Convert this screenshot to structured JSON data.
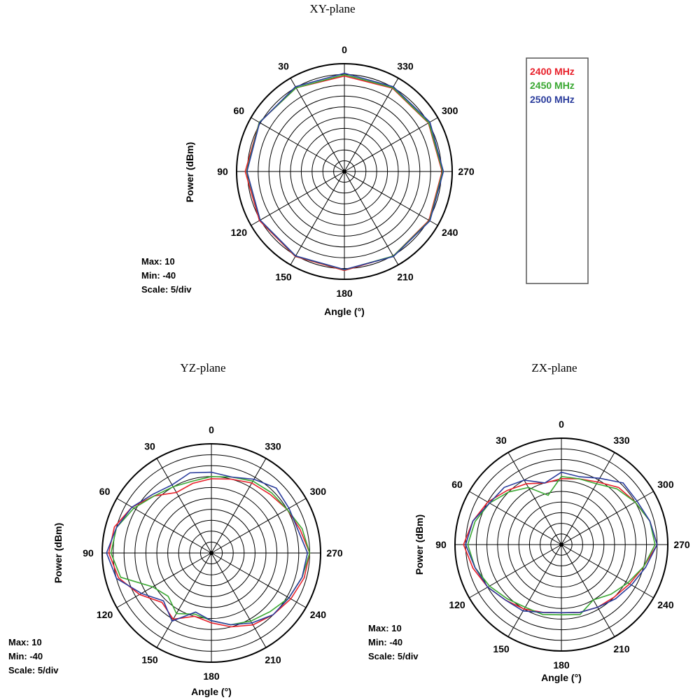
{
  "colors": {
    "c2400": "#e8202a",
    "c2450": "#3aa832",
    "c2500": "#2a3c9c",
    "axes": "#000000"
  },
  "legend": [
    "2400 MHz",
    "2450 MHz",
    "2500 MHz"
  ],
  "chart_data": [
    {
      "type": "polar",
      "title": "XY-plane",
      "xlabel": "Angle  (°)",
      "ylabel": "Power  (dBm)",
      "stats": {
        "max": "Max: 10",
        "min": "Min: -40",
        "scale": "Scale: 5/div"
      },
      "rlim": [
        -40,
        10
      ],
      "angle_ticks": [
        "0",
        "30",
        "60",
        "90",
        "120",
        "150",
        "180",
        "210",
        "240",
        "270",
        "300",
        "330"
      ],
      "angles": [
        0,
        30,
        60,
        90,
        120,
        150,
        180,
        210,
        240,
        270,
        300,
        330
      ],
      "series": [
        {
          "name": "2400 MHz",
          "values": [
            4.3,
            4.8,
            5.6,
            6,
            5.5,
            5.5,
            5.9,
            5.3,
            5.3,
            5.3,
            5,
            4.6
          ]
        },
        {
          "name": "2450 MHz",
          "values": [
            4.9,
            4.8,
            5.6,
            5.4,
            5.1,
            5.3,
            5.6,
            5.3,
            5.6,
            5.6,
            5.2,
            4.9
          ]
        },
        {
          "name": "2500 MHz",
          "values": [
            5.6,
            5.4,
            5.4,
            5.2,
            5.1,
            5.2,
            5.5,
            5.5,
            5.8,
            5.9,
            5.8,
            5.4
          ]
        }
      ]
    },
    {
      "type": "polar",
      "title": "YZ-plane",
      "xlabel": "Angle  (°)",
      "ylabel": "Power  (dBm)",
      "stats": {
        "max": "Max: 10",
        "min": "Min: -40",
        "scale": "Scale: 5/div"
      },
      "rlim": [
        -40,
        10
      ],
      "angle_ticks": [
        "0",
        "30",
        "60",
        "90",
        "120",
        "150",
        "180",
        "210",
        "240",
        "270",
        "300",
        "330"
      ],
      "angles": [
        0,
        15,
        30,
        45,
        60,
        75,
        90,
        105,
        120,
        135,
        150,
        165,
        180,
        195,
        210,
        225,
        240,
        255,
        270,
        285,
        300,
        315,
        330,
        345
      ],
      "series": [
        {
          "name": "2400 MHz",
          "values": [
            -6,
            -7,
            -8,
            -3,
            2,
            6,
            7,
            4,
            -2,
            -8,
            -5,
            -10,
            -8,
            -5,
            -2,
            0,
            2,
            4,
            5,
            2,
            0,
            -2,
            -3,
            -5
          ]
        },
        {
          "name": "2450 MHz",
          "values": [
            -5,
            -6,
            -5,
            -3,
            1,
            5,
            6,
            3,
            -9,
            -12,
            -8,
            -11,
            -9,
            -6,
            -4,
            -2,
            1,
            3,
            5,
            3,
            0,
            -1,
            -2,
            -4
          ]
        },
        {
          "name": "2500 MHz",
          "values": [
            -3,
            -2,
            -4,
            -2,
            2,
            5,
            8,
            5,
            -3,
            -9,
            -4,
            -12,
            -9,
            -6,
            -3,
            0,
            1,
            3,
            4,
            1,
            1,
            2,
            -1,
            -4
          ]
        }
      ]
    },
    {
      "type": "polar",
      "title": "ZX-plane",
      "xlabel": "Angle  (°)",
      "ylabel": "Power  (dBm)",
      "stats": {
        "max": "Max: 10",
        "min": "Min: -40",
        "scale": "Scale: 5/div"
      },
      "rlim": [
        -40,
        10
      ],
      "angle_ticks": [
        "0",
        "30",
        "60",
        "90",
        "120",
        "150",
        "180",
        "210",
        "240",
        "270",
        "300",
        "330"
      ],
      "angles": [
        0,
        15,
        30,
        45,
        60,
        75,
        90,
        105,
        120,
        135,
        150,
        165,
        180,
        195,
        210,
        225,
        240,
        255,
        270,
        285,
        300,
        315,
        330,
        345
      ],
      "series": [
        {
          "name": "2400 MHz",
          "values": [
            -9,
            -10,
            -7,
            -4,
            0,
            3,
            6,
            3,
            0,
            -3,
            -5,
            -7,
            -8,
            -7,
            -6,
            -5,
            -3,
            0,
            5,
            3,
            0,
            -2,
            -6,
            -8
          ]
        },
        {
          "name": "2450 MHz",
          "values": [
            -8,
            -16,
            -9,
            -5,
            -1,
            2,
            4,
            2,
            -1,
            -4,
            -6,
            -6,
            -7,
            -6,
            -10,
            -7,
            -4,
            0,
            4,
            3,
            0,
            -3,
            -7,
            -8
          ]
        },
        {
          "name": "2500 MHz",
          "values": [
            -6,
            -10,
            -5,
            -2,
            -1,
            3,
            5,
            2,
            0,
            -3,
            -4,
            -7,
            -8,
            -7,
            -6,
            -4,
            -2,
            1,
            5,
            3,
            1,
            1,
            -4,
            -7
          ]
        }
      ]
    }
  ]
}
